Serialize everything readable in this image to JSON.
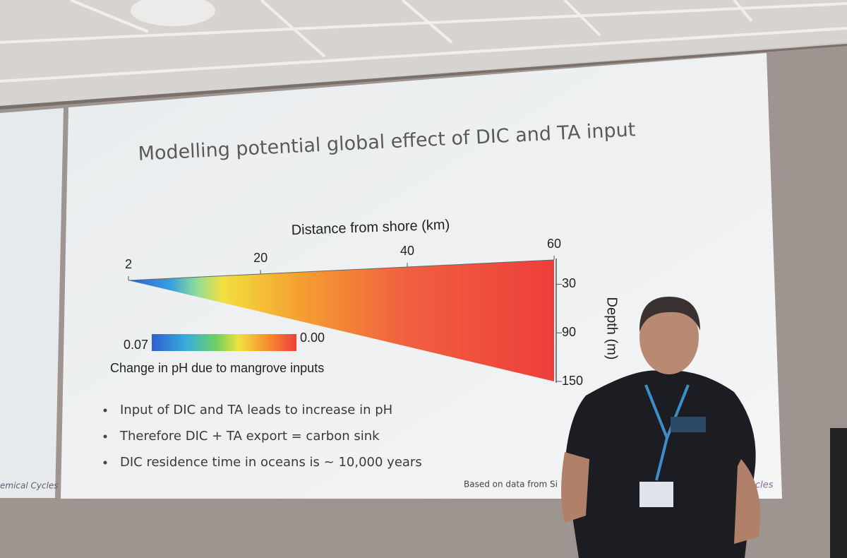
{
  "slide": {
    "title": "Modelling potential global effect of DIC and TA input",
    "figure": {
      "xlabel": "Distance from shore (km)",
      "xticks": [
        2,
        20,
        40,
        60
      ],
      "ylabel": "Depth (m)",
      "yticks": [
        30,
        90,
        150
      ],
      "ylim": [
        0,
        150
      ],
      "colorbar": {
        "ticks": [
          0.07,
          {
            "value": 0,
            "label": "0.00"
          }
        ],
        "label": "Change in pH due to mangrove inputs"
      }
    },
    "bullets": [
      "Input of DIC and TA leads to increase in pH",
      "Therefore DIC + TA export = carbon sink",
      "DIC residence time in oceans is ~ 10,000 years"
    ],
    "footer": "Based on data from Si",
    "left_slide_footer": "emical Cycles",
    "right_footer": "cles"
  }
}
